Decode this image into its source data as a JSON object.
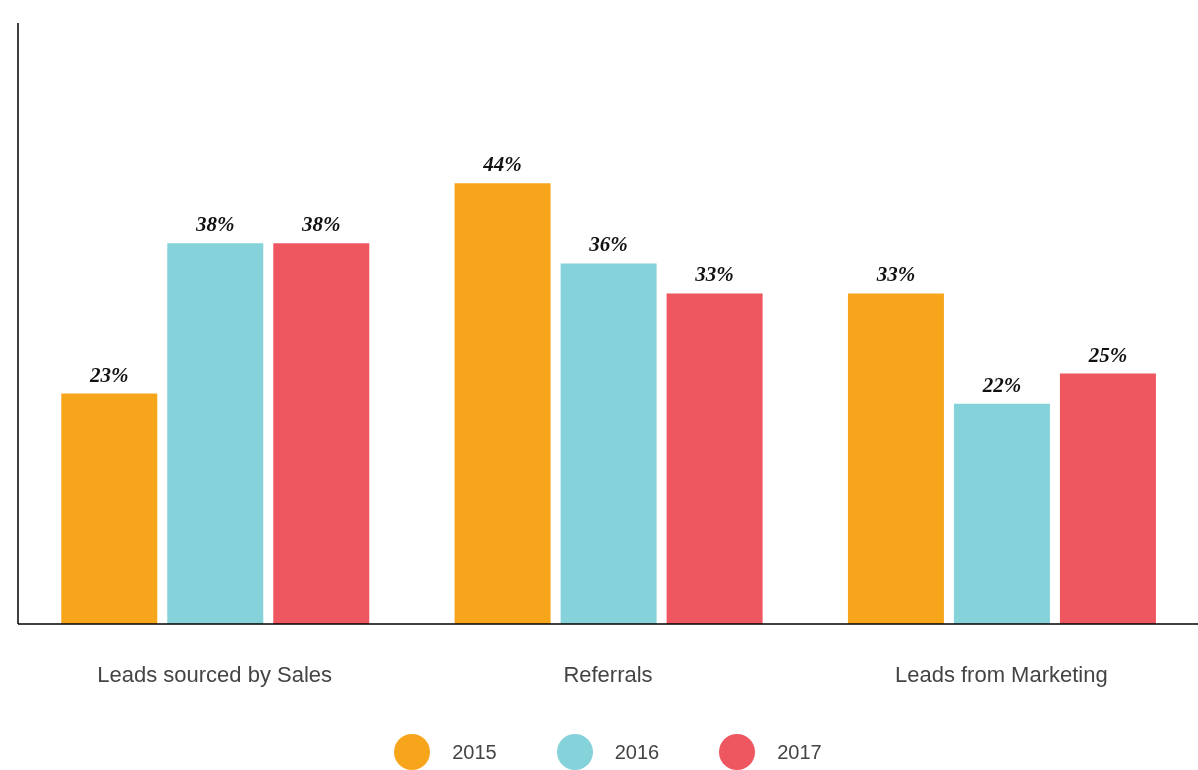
{
  "chart_data": {
    "type": "bar",
    "categories": [
      "Leads sourced by Sales",
      "Referrals",
      "Leads from Marketing"
    ],
    "series": [
      {
        "name": "2015",
        "color": "#f7a61b",
        "values": [
          23,
          44,
          33
        ],
        "value_labels": [
          "23%",
          "44%",
          "33%"
        ]
      },
      {
        "name": "2016",
        "color": "#85d2db",
        "values": [
          38,
          36,
          22
        ],
        "value_labels": [
          "38%",
          "36%",
          "22%"
        ]
      },
      {
        "name": "2017",
        "color": "#ee5660",
        "values": [
          38,
          33,
          25
        ],
        "value_labels": [
          "38%",
          "33%",
          "25%"
        ]
      }
    ],
    "tick_labels": "x",
    "grid": false,
    "legend": "bottom"
  }
}
